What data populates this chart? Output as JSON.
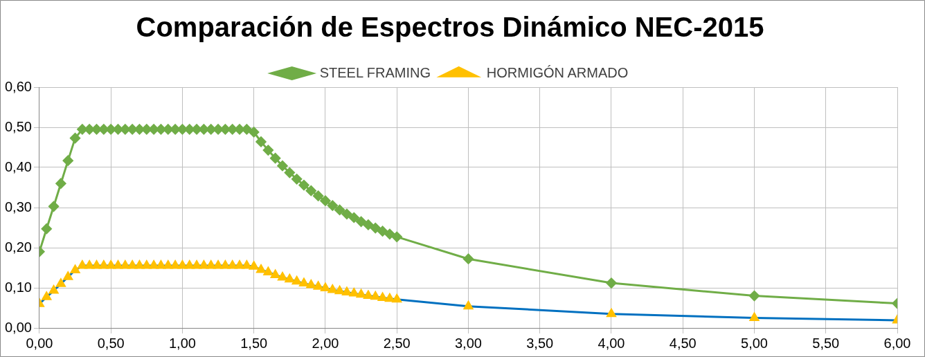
{
  "chart_data": {
    "type": "line",
    "title": "Comparación de Espectros Dinámico NEC-2015",
    "x": [
      0,
      0.05,
      0.1,
      0.15,
      0.2,
      0.25,
      0.3,
      0.35,
      0.4,
      0.45,
      0.5,
      0.55,
      0.6,
      0.65,
      0.7,
      0.75,
      0.8,
      0.85,
      0.9,
      0.95,
      1,
      1.05,
      1.1,
      1.15,
      1.2,
      1.25,
      1.3,
      1.35,
      1.4,
      1.45,
      1.5,
      1.55,
      1.6,
      1.65,
      1.7,
      1.75,
      1.8,
      1.85,
      1.9,
      1.95,
      2,
      2.05,
      2.1,
      2.15,
      2.2,
      2.25,
      2.3,
      2.35,
      2.4,
      2.45,
      2.5,
      3,
      4,
      5,
      6
    ],
    "series": [
      {
        "name": "STEEL FRAMING",
        "color": "#70ad47",
        "marker": "diamond",
        "values": [
          0.19,
          0.247,
          0.303,
          0.36,
          0.417,
          0.473,
          0.495,
          0.495,
          0.495,
          0.495,
          0.495,
          0.495,
          0.495,
          0.495,
          0.495,
          0.495,
          0.495,
          0.495,
          0.495,
          0.495,
          0.495,
          0.495,
          0.495,
          0.495,
          0.495,
          0.495,
          0.495,
          0.495,
          0.495,
          0.495,
          0.488,
          0.464,
          0.443,
          0.423,
          0.404,
          0.387,
          0.371,
          0.356,
          0.342,
          0.329,
          0.317,
          0.305,
          0.294,
          0.284,
          0.275,
          0.265,
          0.257,
          0.249,
          0.241,
          0.234,
          0.227,
          0.172,
          0.112,
          0.08,
          0.061
        ]
      },
      {
        "name": "HORMIGÓN ARMADO",
        "color": "#0070c0",
        "marker": "triangle",
        "colors": [
          "#ffc000",
          "#ffc000",
          "#ffc000",
          "#ffc000",
          "#ffc000",
          "#ffc000",
          "#ffc000",
          "#ffc000",
          "#ffc000",
          "#ffc000",
          "#ffc000",
          "#ffc000",
          "#ffc000",
          "#ffc000",
          "#ffc000",
          "#ffc000",
          "#ffc000",
          "#ffc000",
          "#ffc000",
          "#ffc000",
          "#ffc000",
          "#ffc000",
          "#ffc000",
          "#ffc000",
          "#ffc000",
          "#ffc000",
          "#ffc000",
          "#ffc000",
          "#ffc000",
          "#ffc000",
          "#ffc000",
          "#ffc000",
          "#ffc000",
          "#ffc000",
          "#ffc000",
          "#ffc000",
          "#ffc000",
          "#ffc000",
          "#ffc000",
          "#ffc000",
          "#ffc000",
          "#ffc000",
          "#ffc000",
          "#ffc000",
          "#ffc000",
          "#ffc000",
          "#ffc000",
          "#ffc000",
          "#ffc000",
          "#ffc000",
          "#ffc000",
          "#ffc000",
          "#ffc000",
          "#ffc000",
          "#ffc000"
        ],
        "values": [
          0.06,
          0.077,
          0.093,
          0.11,
          0.127,
          0.144,
          0.155,
          0.155,
          0.155,
          0.155,
          0.155,
          0.155,
          0.155,
          0.155,
          0.155,
          0.155,
          0.155,
          0.155,
          0.155,
          0.155,
          0.155,
          0.155,
          0.155,
          0.155,
          0.155,
          0.155,
          0.155,
          0.155,
          0.155,
          0.155,
          0.153,
          0.145,
          0.139,
          0.132,
          0.126,
          0.121,
          0.116,
          0.111,
          0.107,
          0.103,
          0.099,
          0.095,
          0.092,
          0.089,
          0.086,
          0.083,
          0.08,
          0.078,
          0.075,
          0.073,
          0.071,
          0.054,
          0.035,
          0.025,
          0.019
        ]
      }
    ],
    "xlim": [
      0,
      6
    ],
    "xticks": [
      {
        "value": 0,
        "label": "0,00"
      },
      {
        "value": 0.5,
        "label": "0,50"
      },
      {
        "value": 1,
        "label": "1,00"
      },
      {
        "value": 1.5,
        "label": "1,50"
      },
      {
        "value": 2,
        "label": "2,00"
      },
      {
        "value": 2.5,
        "label": "2,50"
      },
      {
        "value": 3,
        "label": "3,00"
      },
      {
        "value": 3.5,
        "label": "3,50"
      },
      {
        "value": 4,
        "label": "4,00"
      },
      {
        "value": 4.5,
        "label": "4,50"
      },
      {
        "value": 5,
        "label": "5,00"
      },
      {
        "value": 5.5,
        "label": "5,50"
      },
      {
        "value": 6,
        "label": "6,00"
      }
    ],
    "ylim": [
      0,
      0.6
    ],
    "yticks": [
      {
        "value": 0,
        "label": "0,00"
      },
      {
        "value": 0.1,
        "label": "0,10"
      },
      {
        "value": 0.2,
        "label": "0,20"
      },
      {
        "value": 0.3,
        "label": "0,30"
      },
      {
        "value": 0.4,
        "label": "0,40"
      },
      {
        "value": 0.5,
        "label": "0,50"
      },
      {
        "value": 0.6,
        "label": "0,60"
      }
    ],
    "grid": true,
    "legend": "top"
  }
}
